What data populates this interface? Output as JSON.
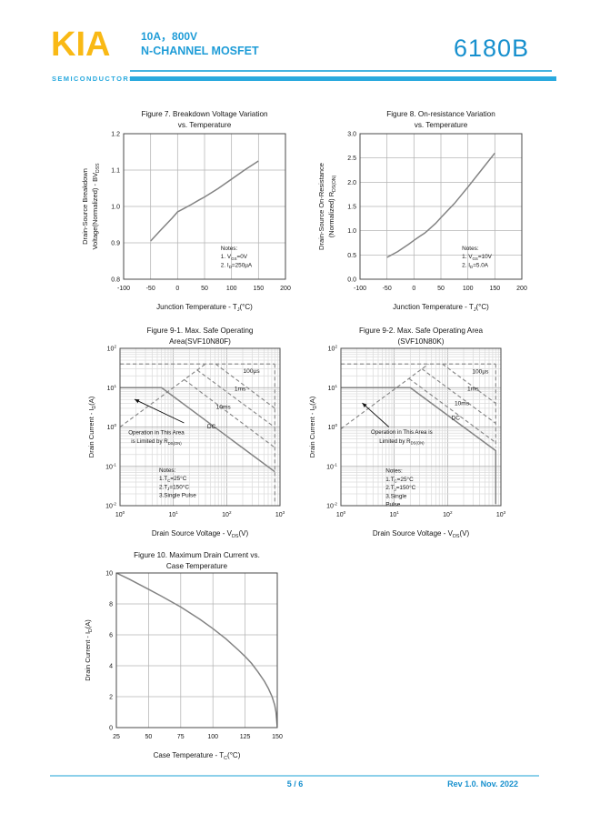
{
  "header": {
    "logo": "KIA",
    "logo_subtitle": "SEMICONDUCTORS",
    "rating": "10A，800V",
    "device_type": "N-CHANNEL MOSFET",
    "part_number": "6180B",
    "accent_yellow": "#F9B915",
    "accent_blue": "#1E9CD7",
    "accent_cyan_bar": "#29A9DE"
  },
  "footer": {
    "page_indicator": "5 / 6",
    "revision": "Rev 1.0. Nov. 2022"
  },
  "chart_data": [
    {
      "type": "line",
      "title_lines": [
        "Figure 7. Breakdown Voltage Variation",
        "vs. Temperature"
      ],
      "xlabel": "Junction Temperature  -  T~J~(°C)",
      "ylabel_lines": [
        "Drain-Source Breakdown",
        "Voltage(Normalized)  -  BV~DSS~"
      ],
      "x": {
        "scale": "linear",
        "min": -100,
        "max": 200,
        "ticks": [
          "-100",
          "-50",
          "0",
          "50",
          "100",
          "150",
          "200"
        ]
      },
      "y": {
        "scale": "linear",
        "min": 0.8,
        "max": 1.2,
        "ticks": [
          "0.8",
          "0.9",
          "1.0",
          "1.1",
          "1.2"
        ]
      },
      "series": [
        {
          "name": "bvdss-vs-temp",
          "style": "solid",
          "points": [
            [
              -50,
              0.905
            ],
            [
              -30,
              0.937
            ],
            [
              -10,
              0.968
            ],
            [
              0,
              0.985
            ],
            [
              10,
              0.993
            ],
            [
              25,
              1.005
            ],
            [
              40,
              1.018
            ],
            [
              50,
              1.026
            ],
            [
              75,
              1.049
            ],
            [
              100,
              1.075
            ],
            [
              125,
              1.101
            ],
            [
              150,
              1.125
            ]
          ]
        }
      ],
      "notes": {
        "fx": 0.6,
        "fy": 0.8,
        "lines": [
          "Notes:",
          "1. V~GS~=0V",
          "2. I~D~=250µA"
        ]
      }
    },
    {
      "type": "line",
      "title_lines": [
        "Figure 8. On-resistance Variation",
        "vs. Temperature"
      ],
      "xlabel": "Junction Temperature  -  T~J~(°C)",
      "ylabel_lines": [
        "Drain-Source On-Resistance",
        "(Normalized)      R~DS(ON)~"
      ],
      "x": {
        "scale": "linear",
        "min": -100,
        "max": 200,
        "ticks": [
          "-100",
          "-50",
          "0",
          "50",
          "100",
          "150",
          "200"
        ]
      },
      "y": {
        "scale": "linear",
        "min": 0.0,
        "max": 3.0,
        "ticks": [
          "0.0",
          "0.5",
          "1.0",
          "1.5",
          "2.0",
          "2.5",
          "3.0"
        ]
      },
      "series": [
        {
          "name": "rdson-vs-temp",
          "style": "solid",
          "points": [
            [
              -50,
              0.45
            ],
            [
              -30,
              0.57
            ],
            [
              -10,
              0.72
            ],
            [
              0,
              0.8
            ],
            [
              10,
              0.88
            ],
            [
              20,
              0.95
            ],
            [
              25,
              1.0
            ],
            [
              40,
              1.15
            ],
            [
              50,
              1.27
            ],
            [
              75,
              1.56
            ],
            [
              100,
              1.9
            ],
            [
              125,
              2.25
            ],
            [
              150,
              2.6
            ]
          ]
        }
      ],
      "notes": {
        "fx": 0.63,
        "fy": 0.8,
        "lines": [
          "Notes:",
          "1. V~GS~=10V",
          "2. I~D~=5.0A"
        ]
      }
    },
    {
      "type": "line",
      "title_lines": [
        "Figure 9-1. Max. Safe Operating",
        "Area(SVF10N80F)"
      ],
      "xlabel": "Drain Source Voltage - V~DS~(V)",
      "ylabel_lines": [
        "Drain Current - I~D~(A)"
      ],
      "x": {
        "scale": "log",
        "min": 1,
        "max": 1000,
        "tick_exponents": [
          0,
          1,
          2,
          3
        ]
      },
      "y": {
        "scale": "log",
        "min": 0.01,
        "max": 100,
        "tick_exponents": [
          -2,
          -1,
          0,
          1,
          2
        ]
      },
      "series": [
        {
          "name": "pulsed-current-cap",
          "style": "dashed",
          "points": [
            [
              1,
              40
            ],
            [
              800,
              40
            ]
          ]
        },
        {
          "name": "rdson-limit-line",
          "style": "dashed",
          "points": [
            [
              1,
              1
            ],
            [
              40,
              40
            ]
          ]
        },
        {
          "name": "pulse-100us",
          "style": "dashed",
          "points": [
            [
              62,
              40
            ],
            [
              800,
              3.0
            ]
          ]
        },
        {
          "name": "pulse-1ms",
          "style": "dashed",
          "points": [
            [
              28,
              28
            ],
            [
              800,
              0.98
            ]
          ]
        },
        {
          "name": "pulse-10ms",
          "style": "dashed",
          "points": [
            [
              16,
              16
            ],
            [
              800,
              0.3
            ]
          ]
        },
        {
          "name": "dc-limit",
          "style": "solid",
          "points": [
            [
              1,
              10
            ],
            [
              6,
              10
            ],
            [
              800,
              0.073
            ]
          ]
        },
        {
          "name": "vds-max-line",
          "style": "dashed",
          "points": [
            [
              800,
              40
            ],
            [
              800,
              0.011
            ]
          ]
        }
      ],
      "annotations": [
        {
          "text": "100µs",
          "fx": 0.77,
          "fy": 0.155
        },
        {
          "text": "1ms",
          "fx": 0.715,
          "fy": 0.27
        },
        {
          "text": "10ms",
          "fx": 0.6,
          "fy": 0.385
        },
        {
          "text": "DC",
          "fx": 0.545,
          "fy": 0.51
        }
      ],
      "callout": {
        "lines": [
          "Operation in This Area",
          "is Limited by R~DS(ON)~"
        ],
        "fx": 0.227,
        "fy": 0.545,
        "line_step": 0.057,
        "arrow": {
          "x1": 0.4,
          "y1": 0.474,
          "x2": 0.091,
          "y2": 0.324
        }
      },
      "notes": {
        "fx": 0.244,
        "fy": 0.786,
        "lines": [
          "Notes:",
          "1.T~C~=25°C",
          "2.T~J~=150°C",
          "3.Single Pulse"
        ]
      }
    },
    {
      "type": "line",
      "title_lines": [
        "Figure 9-2. Max. Safe Operating Area",
        "(SVF10N80K)"
      ],
      "xlabel": "Drain Source Voltage - V~DS~(V)",
      "ylabel_lines": [
        "Drain Current - I~D~(A)"
      ],
      "x": {
        "scale": "log",
        "min": 1,
        "max": 1000,
        "tick_exponents": [
          0,
          1,
          2,
          3
        ]
      },
      "y": {
        "scale": "log",
        "min": 0.01,
        "max": 100,
        "tick_exponents": [
          -2,
          -1,
          0,
          1,
          2
        ]
      },
      "series": [
        {
          "name": "pulsed-current-cap",
          "style": "dashed",
          "points": [
            [
              1,
              40
            ],
            [
              800,
              40
            ]
          ]
        },
        {
          "name": "rdson-limit-line",
          "style": "dashed",
          "points": [
            [
              1,
              0.9
            ],
            [
              44,
              40
            ]
          ]
        },
        {
          "name": "pulse-100us",
          "style": "dashed",
          "points": [
            [
              80,
              40
            ],
            [
              800,
              4.0
            ]
          ]
        },
        {
          "name": "pulse-1ms",
          "style": "dashed",
          "points": [
            [
              33,
              30
            ],
            [
              800,
              1.24
            ]
          ]
        },
        {
          "name": "pulse-10ms",
          "style": "dashed",
          "points": [
            [
              19,
              17
            ],
            [
              800,
              0.4
            ]
          ]
        },
        {
          "name": "dc-limit",
          "style": "solid",
          "points": [
            [
              1,
              10
            ],
            [
              20,
              10
            ],
            [
              800,
              0.25
            ],
            [
              800,
              0.011
            ]
          ]
        },
        {
          "name": "vds-max-line",
          "style": "dashed",
          "points": [
            [
              800,
              40
            ],
            [
              800,
              0.3
            ]
          ]
        }
      ],
      "annotations": [
        {
          "text": "100µs",
          "fx": 0.82,
          "fy": 0.16
        },
        {
          "text": "1ms",
          "fx": 0.79,
          "fy": 0.27
        },
        {
          "text": "10ms",
          "fx": 0.71,
          "fy": 0.36
        },
        {
          "text": "DC",
          "fx": 0.69,
          "fy": 0.455
        }
      ],
      "callout": {
        "lines": [
          "Operation in This Area is",
          "Limited by R~DS(ON)~"
        ],
        "fx": 0.38,
        "fy": 0.543,
        "line_step": 0.057,
        "arrow": {
          "x1": 0.3,
          "y1": 0.5,
          "x2": 0.133,
          "y2": 0.347
        }
      },
      "notes": {
        "fx": 0.28,
        "fy": 0.79,
        "lines": [
          "Notes:",
          "1.T~C~=25°C",
          "2.T~J~=150°C",
          "3.Single",
          "Pulse"
        ]
      }
    },
    {
      "type": "line",
      "title_lines": [
        "Figure 10. Maximum Drain Current vs.",
        "Case Temperature"
      ],
      "xlabel": "Case Temperature  -  T~C~(°C)",
      "ylabel_lines": [
        "Drain Current - I~D~(A)"
      ],
      "x": {
        "scale": "linear",
        "min": 25,
        "max": 150,
        "ticks": [
          "25",
          "50",
          "75",
          "100",
          "125",
          "150"
        ]
      },
      "y": {
        "scale": "linear",
        "min": 0,
        "max": 10,
        "ticks": [
          "0",
          "2",
          "4",
          "6",
          "8",
          "10"
        ]
      },
      "series": [
        {
          "name": "id-vs-case-temp",
          "style": "solid",
          "points": [
            [
              25,
              10
            ],
            [
              35,
              9.6
            ],
            [
              50,
              8.95
            ],
            [
              60,
              8.5
            ],
            [
              75,
              7.8
            ],
            [
              90,
              7.0
            ],
            [
              100,
              6.4
            ],
            [
              110,
              5.75
            ],
            [
              120,
              5.0
            ],
            [
              125,
              4.6
            ],
            [
              130,
              4.15
            ],
            [
              135,
              3.6
            ],
            [
              140,
              3.0
            ],
            [
              143,
              2.55
            ],
            [
              146,
              2.0
            ],
            [
              148,
              1.45
            ],
            [
              149,
              1.0
            ],
            [
              150,
              0.05
            ]
          ]
        }
      ]
    }
  ]
}
